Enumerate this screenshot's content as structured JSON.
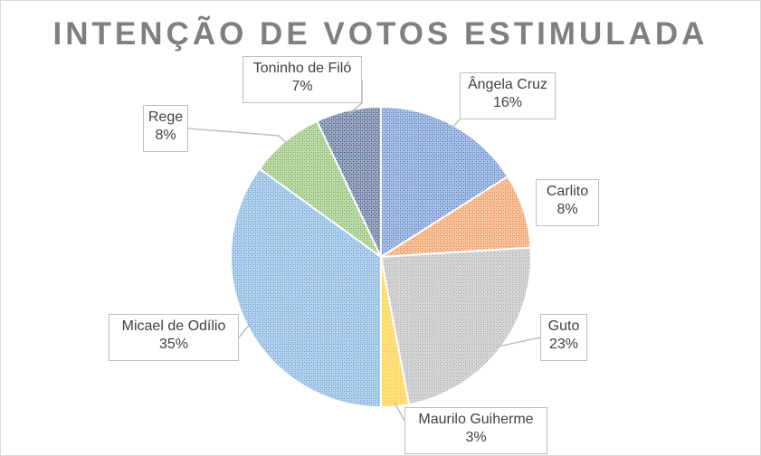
{
  "chart_data": {
    "type": "pie",
    "title": "INTENÇÃO DE VOTOS ESTIMULADA",
    "slices": [
      {
        "name": "Ângela Cruz",
        "value": 16,
        "label": "16%",
        "color": "#4472c4"
      },
      {
        "name": "Carlito",
        "value": 8,
        "label": "8%",
        "color": "#ed7d31"
      },
      {
        "name": "Guto",
        "value": 23,
        "label": "23%",
        "color": "#a5a5a5"
      },
      {
        "name": "Maurilo Guiherme",
        "value": 3,
        "label": "3%",
        "color": "#ffc000"
      },
      {
        "name": "Micael de Odílio",
        "value": 35,
        "label": "35%",
        "color": "#5b9bd5"
      },
      {
        "name": "Rege",
        "value": 8,
        "label": "8%",
        "color": "#70ad47"
      },
      {
        "name": "Toninho de Filó",
        "value": 7,
        "label": "7%",
        "color": "#264478"
      }
    ],
    "start_angle_deg": 0,
    "direction": "clockwise",
    "pattern": "dotted-hatch",
    "legend": "none",
    "data_labels": "callout-boxes"
  }
}
